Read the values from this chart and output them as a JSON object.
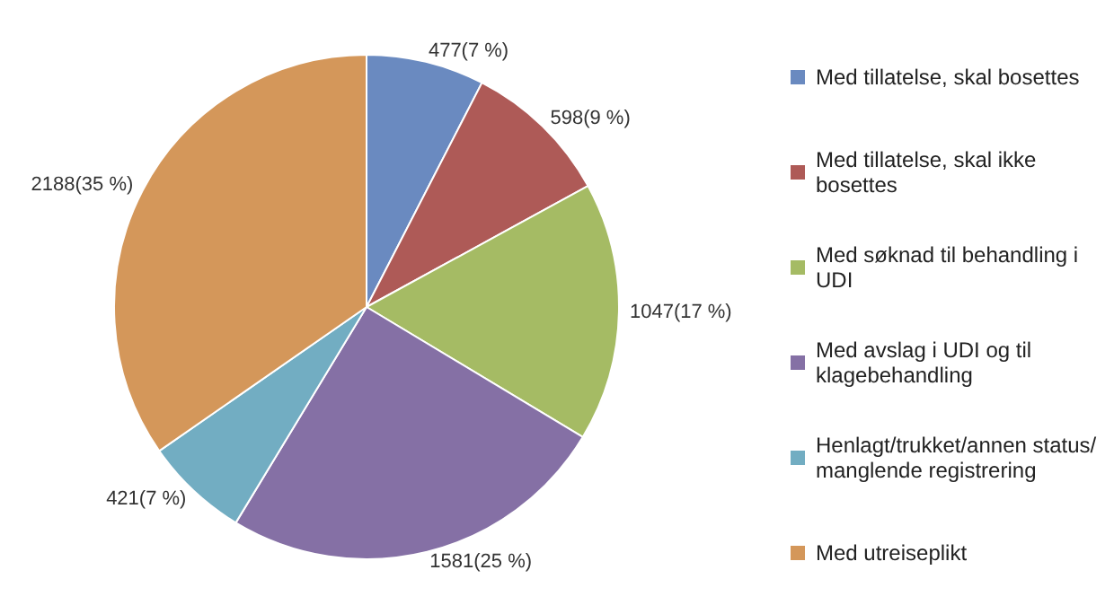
{
  "chart_data": {
    "type": "pie",
    "categories": [
      "Med tillatelse, skal bosettes",
      "Med tillatelse, skal ikke bosettes",
      "Med søknad til behandling i UDI",
      "Med avslag i UDI og til klagebehandling",
      "Henlagt/trukket/annen status/ manglende registrering",
      "Med utreiseplikt"
    ],
    "values": [
      477,
      598,
      1047,
      1581,
      421,
      2188
    ],
    "colors": [
      "#6a8ac0",
      "#ae5a57",
      "#a5bb64",
      "#8570a5",
      "#72adc2",
      "#d4975a"
    ],
    "value_labels": [
      "477(7 %)",
      "598(9 %)",
      "1047(17 %)",
      "1581(25 %)",
      "421(7 %)",
      "2188(35 %)"
    ],
    "legend": "right"
  }
}
